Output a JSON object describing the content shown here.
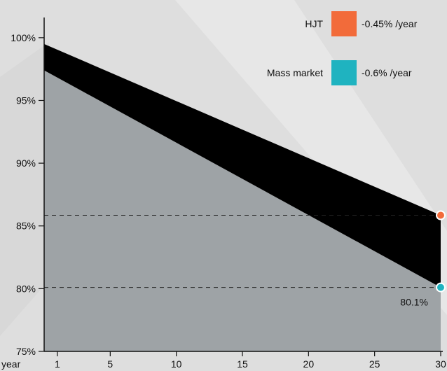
{
  "chart_data": {
    "type": "area",
    "x_axis_label": "year",
    "x_ticks": [
      1,
      5,
      10,
      15,
      20,
      25,
      30
    ],
    "y_ticks": [
      75,
      80,
      85,
      90,
      95,
      100
    ],
    "y_tick_labels": [
      "75%",
      "80%",
      "85%",
      "90%",
      "95%",
      "100%"
    ],
    "xlim": [
      0,
      30
    ],
    "ylim": [
      75,
      102
    ],
    "series": [
      {
        "name": "HJT",
        "rate_label": "-0.45% /year",
        "color": "#f26b3a",
        "fill": "#000000",
        "x": [
          0,
          30
        ],
        "y": [
          99.5,
          85.85
        ]
      },
      {
        "name": "Mass market",
        "rate_label": "-0.6% /year",
        "color": "#1fb3c0",
        "fill": "#9ea3a6",
        "x": [
          0,
          30
        ],
        "y": [
          97.4,
          80.1
        ]
      }
    ],
    "annotations": [
      {
        "text": "80.1%",
        "x": 30,
        "y": 80.1
      }
    ],
    "reference_lines": [
      85.85,
      80.1
    ],
    "legend_position": "top-right",
    "background_color": "#dedede"
  }
}
